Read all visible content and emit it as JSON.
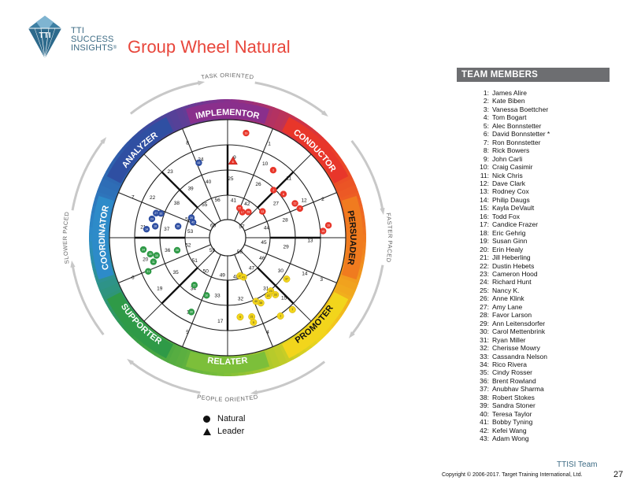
{
  "brand": {
    "line1": "TTI",
    "line2": "SUCCESS",
    "line3": "INSIGHTS",
    "trademark": "®"
  },
  "page_title": "Group Wheel Natural",
  "wheel": {
    "outer_labels": {
      "top": "TASK ORIENTED",
      "bottom": "PEOPLE ORIENTED",
      "left": "SLOWER PACED",
      "right": "FASTER PACED"
    },
    "sectors": [
      {
        "name": "IMPLEMENTOR",
        "color": "#8a2f8c"
      },
      {
        "name": "CONDUCTOR",
        "color": "#e8362a"
      },
      {
        "name": "PERSUADER",
        "color": "#f07b1f"
      },
      {
        "name": "PROMOTER",
        "color": "#f2d51c"
      },
      {
        "name": "RELATER",
        "color": "#7cbf3a"
      },
      {
        "name": "SUPPORTER",
        "color": "#2f9a47"
      },
      {
        "name": "COORDINATOR",
        "color": "#2d8bc9"
      },
      {
        "name": "ANALYZER",
        "color": "#2f4fa2"
      }
    ],
    "position_numbers": [
      {
        "n": "1",
        "a": 24,
        "r": 0.87
      },
      {
        "n": "2",
        "a": 68,
        "r": 0.87
      },
      {
        "n": "3",
        "a": 114,
        "r": 0.87
      },
      {
        "n": "4",
        "a": 157,
        "r": 0.87
      },
      {
        "n": "5",
        "a": 203,
        "r": 0.87
      },
      {
        "n": "6",
        "a": 247,
        "r": 0.87
      },
      {
        "n": "7",
        "a": 293,
        "r": 0.87
      },
      {
        "n": "8",
        "a": 337,
        "r": 0.87
      },
      {
        "n": "9",
        "a": 5,
        "r": 0.68
      },
      {
        "n": "10",
        "a": 27,
        "r": 0.7
      },
      {
        "n": "11",
        "a": 46,
        "r": 0.72
      },
      {
        "n": "12",
        "a": 64,
        "r": 0.72
      },
      {
        "n": "13",
        "a": 92,
        "r": 0.7
      },
      {
        "n": "14",
        "a": 115,
        "r": 0.72
      },
      {
        "n": "15",
        "a": 137,
        "r": 0.7
      },
      {
        "n": "16",
        "a": 163,
        "r": 0.7
      },
      {
        "n": "17",
        "a": 185,
        "r": 0.71
      },
      {
        "n": "18",
        "a": 207,
        "r": 0.71
      },
      {
        "n": "19",
        "a": 233,
        "r": 0.72
      },
      {
        "n": "20",
        "a": 255,
        "r": 0.72
      },
      {
        "n": "21",
        "a": 277,
        "r": 0.72
      },
      {
        "n": "22",
        "a": 298,
        "r": 0.72
      },
      {
        "n": "23",
        "a": 319,
        "r": 0.74
      },
      {
        "n": "24",
        "a": 341,
        "r": 0.7
      },
      {
        "n": "25",
        "a": 3,
        "r": 0.5
      },
      {
        "n": "26",
        "a": 30,
        "r": 0.52
      },
      {
        "n": "27",
        "a": 55,
        "r": 0.5
      },
      {
        "n": "28",
        "a": 73,
        "r": 0.51
      },
      {
        "n": "29",
        "a": 99,
        "r": 0.5
      },
      {
        "n": "30",
        "a": 122,
        "r": 0.53
      },
      {
        "n": "31",
        "a": 143,
        "r": 0.54
      },
      {
        "n": "32",
        "a": 168,
        "r": 0.53
      },
      {
        "n": "33",
        "a": 190,
        "r": 0.5
      },
      {
        "n": "34",
        "a": 214,
        "r": 0.52
      },
      {
        "n": "35",
        "a": 236,
        "r": 0.53
      },
      {
        "n": "36",
        "a": 258,
        "r": 0.52
      },
      {
        "n": "37",
        "a": 278,
        "r": 0.52
      },
      {
        "n": "38",
        "a": 304,
        "r": 0.52
      },
      {
        "n": "39",
        "a": 323,
        "r": 0.52
      },
      {
        "n": "40",
        "a": 341,
        "r": 0.5
      },
      {
        "n": "41",
        "a": 9,
        "r": 0.32
      },
      {
        "n": "42",
        "a": 30,
        "r": 0.33
      },
      {
        "n": "43",
        "a": 54,
        "r": 0.36
      },
      {
        "n": "44",
        "a": 76,
        "r": 0.34
      },
      {
        "n": "45",
        "a": 98,
        "r": 0.31
      },
      {
        "n": "46",
        "a": 121,
        "r": 0.34
      },
      {
        "n": "47",
        "a": 142,
        "r": 0.33
      },
      {
        "n": "48",
        "a": 168,
        "r": 0.34
      },
      {
        "n": "49",
        "a": 188,
        "r": 0.32
      },
      {
        "n": "50",
        "a": 213,
        "r": 0.34
      },
      {
        "n": "51",
        "a": 235,
        "r": 0.34
      },
      {
        "n": "52",
        "a": 259,
        "r": 0.34
      },
      {
        "n": "53",
        "a": 279,
        "r": 0.32
      },
      {
        "n": "54",
        "a": 295,
        "r": 0.37
      },
      {
        "n": "55",
        "a": 325,
        "r": 0.34
      },
      {
        "n": "56",
        "a": 345,
        "r": 0.33
      },
      {
        "n": "57",
        "a": 53,
        "r": 0.15
      },
      {
        "n": "58",
        "a": 140,
        "r": 0.16
      },
      {
        "n": "59",
        "a": 230,
        "r": 0.17
      },
      {
        "n": "60",
        "a": 310,
        "r": 0.16
      }
    ],
    "markers": [
      {
        "n": "19",
        "a": 10,
        "r": 0.9,
        "color": "#e8362a",
        "shape": "circle"
      },
      {
        "n": "6",
        "a": 4,
        "r": 0.65,
        "color": "#e8362a",
        "shape": "triangle"
      },
      {
        "n": "3",
        "a": 34,
        "r": 0.69,
        "color": "#e8362a",
        "shape": "circle"
      },
      {
        "n": "2",
        "a": 44,
        "r": 0.56,
        "color": "#e8362a",
        "shape": "circle"
      },
      {
        "n": "8",
        "a": 52,
        "r": 0.6,
        "color": "#e8362a",
        "shape": "circle"
      },
      {
        "n": "12",
        "a": 63,
        "r": 0.64,
        "color": "#e8362a",
        "shape": "circle"
      },
      {
        "n": "4",
        "a": 68,
        "r": 0.66,
        "color": "#e8362a",
        "shape": "circle"
      },
      {
        "n": "16",
        "a": 83,
        "r": 0.86,
        "color": "#e8362a",
        "shape": "circle"
      },
      {
        "n": "15",
        "a": 86,
        "r": 0.81,
        "color": "#e8362a",
        "shape": "circle"
      },
      {
        "n": "17",
        "a": 30,
        "r": 0.25,
        "color": "#e8362a",
        "shape": "circle"
      },
      {
        "n": "22",
        "a": 22,
        "r": 0.27,
        "color": "#e8362a",
        "shape": "circle"
      },
      {
        "n": "28",
        "a": 39,
        "r": 0.28,
        "color": "#e8362a",
        "shape": "circle"
      },
      {
        "n": "13",
        "a": 53,
        "r": 0.37,
        "color": "#e8362a",
        "shape": "circle"
      },
      {
        "n": "43",
        "a": 339,
        "r": 0.68,
        "color": "#2f4fa2",
        "shape": "circle"
      },
      {
        "n": "27",
        "a": 289,
        "r": 0.64,
        "color": "#2f4fa2",
        "shape": "circle"
      },
      {
        "n": "32",
        "a": 290,
        "r": 0.6,
        "color": "#2f4fa2",
        "shape": "circle"
      },
      {
        "n": "24",
        "a": 284,
        "r": 0.66,
        "color": "#2f4fa2",
        "shape": "circle"
      },
      {
        "n": "18",
        "a": 279,
        "r": 0.62,
        "color": "#2f4fa2",
        "shape": "circle"
      },
      {
        "n": "14",
        "a": 276,
        "r": 0.69,
        "color": "#2f4fa2",
        "shape": "circle"
      },
      {
        "n": "36",
        "a": 283,
        "r": 0.43,
        "color": "#2f4fa2",
        "shape": "circle"
      },
      {
        "n": "39",
        "a": 299,
        "r": 0.35,
        "color": "#2f4fa2",
        "shape": "circle"
      },
      {
        "n": "42",
        "a": 294,
        "r": 0.32,
        "color": "#2f4fa2",
        "shape": "circle"
      },
      {
        "n": "34",
        "a": 262,
        "r": 0.72,
        "color": "#2f9a47",
        "shape": "circle"
      },
      {
        "n": "25",
        "a": 258,
        "r": 0.67,
        "color": "#2f9a47",
        "shape": "circle"
      },
      {
        "n": "35",
        "a": 256,
        "r": 0.62,
        "color": "#2f9a47",
        "shape": "circle"
      },
      {
        "n": "11",
        "a": 252,
        "r": 0.66,
        "color": "#2f9a47",
        "shape": "circle"
      },
      {
        "n": "31",
        "a": 247,
        "r": 0.73,
        "color": "#2f9a47",
        "shape": "circle"
      },
      {
        "n": "26",
        "a": 256,
        "r": 0.44,
        "color": "#2f9a47",
        "shape": "circle"
      },
      {
        "n": "21",
        "a": 215,
        "r": 0.49,
        "color": "#2f9a47",
        "shape": "circle"
      },
      {
        "n": "10",
        "a": 200,
        "r": 0.52,
        "color": "#2f9a47",
        "shape": "circle"
      },
      {
        "n": "30",
        "a": 206,
        "r": 0.7,
        "color": "#2f9a47",
        "shape": "circle"
      },
      {
        "n": "29",
        "a": 162,
        "r": 0.34,
        "color": "#f2d51c",
        "shape": "circle"
      },
      {
        "n": "41",
        "a": 158,
        "r": 0.36,
        "color": "#f2d51c",
        "shape": "circle"
      },
      {
        "n": "37",
        "a": 125,
        "r": 0.61,
        "color": "#f2d51c",
        "shape": "circle"
      },
      {
        "n": "33",
        "a": 140,
        "r": 0.63,
        "color": "#f2d51c",
        "shape": "circle"
      },
      {
        "n": "20",
        "a": 145,
        "r": 0.6,
        "color": "#f2d51c",
        "shape": "circle"
      },
      {
        "n": "23",
        "a": 141,
        "r": 0.58,
        "color": "#f2d51c",
        "shape": "circle"
      },
      {
        "n": "38",
        "a": 153,
        "r": 0.62,
        "color": "#f2d51c",
        "shape": "circle"
      },
      {
        "n": "40",
        "a": 156,
        "r": 0.59,
        "color": "#f2d51c",
        "shape": "circle"
      },
      {
        "n": "21",
        "a": 163,
        "r": 0.7,
        "color": "#f2d51c",
        "shape": "circle"
      },
      {
        "n": "9",
        "a": 171,
        "r": 0.68,
        "color": "#f2d51c",
        "shape": "circle"
      },
      {
        "n": "5",
        "a": 163,
        "r": 0.75,
        "color": "#f2d51c",
        "shape": "circle"
      },
      {
        "n": "1",
        "a": 146,
        "r": 0.8,
        "color": "#f2d51c",
        "shape": "circle"
      },
      {
        "n": "7",
        "a": 138,
        "r": 0.82,
        "color": "#f2d51c",
        "shape": "circle"
      }
    ]
  },
  "legend": [
    {
      "symbol": "circle",
      "label": "Natural"
    },
    {
      "symbol": "triangle",
      "label": "Leader"
    }
  ],
  "team_header": "TEAM MEMBERS",
  "team_members": [
    {
      "num": "1:",
      "name": "James Alire"
    },
    {
      "num": "2:",
      "name": "Kate Biben"
    },
    {
      "num": "3:",
      "name": "Vanessa Boettcher"
    },
    {
      "num": "4:",
      "name": "Tom Bogart"
    },
    {
      "num": "5:",
      "name": "Alec Bonnstetter"
    },
    {
      "num": "6:",
      "name": "David Bonnstetter *"
    },
    {
      "num": "7:",
      "name": "Ron Bonnstetter"
    },
    {
      "num": "8:",
      "name": "Rick Bowers"
    },
    {
      "num": "9:",
      "name": "John Carli"
    },
    {
      "num": "10:",
      "name": "Craig Casimir"
    },
    {
      "num": "11:",
      "name": "Nick Chris"
    },
    {
      "num": "12:",
      "name": "Dave Clark"
    },
    {
      "num": "13:",
      "name": "Rodney Cox"
    },
    {
      "num": "14:",
      "name": "Philip Daugs"
    },
    {
      "num": "15:",
      "name": "Kayla DeVault"
    },
    {
      "num": "16:",
      "name": "Todd Fox"
    },
    {
      "num": "17:",
      "name": "Candice Frazer"
    },
    {
      "num": "18:",
      "name": "Eric Gehrig"
    },
    {
      "num": "19:",
      "name": "Susan Ginn"
    },
    {
      "num": "20:",
      "name": "Erin Healy"
    },
    {
      "num": "21:",
      "name": "Jill Heberling"
    },
    {
      "num": "22:",
      "name": "Dustin Hebets"
    },
    {
      "num": "23:",
      "name": "Cameron Hood"
    },
    {
      "num": "24:",
      "name": "Richard Hunt"
    },
    {
      "num": "25:",
      "name": "Nancy K."
    },
    {
      "num": "26:",
      "name": "Anne Klink"
    },
    {
      "num": "27:",
      "name": "Amy Lane"
    },
    {
      "num": "28:",
      "name": "Favor Larson"
    },
    {
      "num": "29:",
      "name": "Ann Leitensdorfer"
    },
    {
      "num": "30:",
      "name": "Carol Mettenbrink"
    },
    {
      "num": "31:",
      "name": "Ryan Miller"
    },
    {
      "num": "32:",
      "name": "Cherisse Mowry"
    },
    {
      "num": "33:",
      "name": "Cassandra Nelson"
    },
    {
      "num": "34:",
      "name": "Rico Rivera"
    },
    {
      "num": "35:",
      "name": "Cindy Rosser"
    },
    {
      "num": "36:",
      "name": "Brent Rowland"
    },
    {
      "num": "37:",
      "name": "Anubhav Sharma"
    },
    {
      "num": "38:",
      "name": "Robert Stokes"
    },
    {
      "num": "39:",
      "name": "Sandra Stoner"
    },
    {
      "num": "40:",
      "name": "Teresa Taylor"
    },
    {
      "num": "41:",
      "name": "Bobby Tyning"
    },
    {
      "num": "42:",
      "name": "Kefei Wang"
    },
    {
      "num": "43:",
      "name": "Adam Wong"
    }
  ],
  "footer": {
    "team": "TTISI Team",
    "copyright": "Copyright © 2006-2017. Target Training International, Ltd.",
    "page_number": "27"
  }
}
